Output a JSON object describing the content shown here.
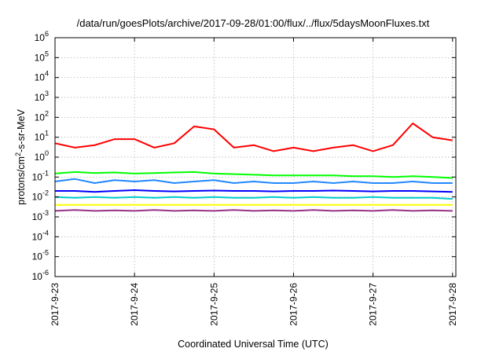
{
  "chart_data": {
    "type": "line",
    "title": "/data/run/goesPlots/archive/2017-09-28/01:00/flux/../flux/5daysMoonFluxes.txt",
    "xlabel": "Coordinated Universal Time (UTC)",
    "ylabel": "protons/cm2-s-sr-MeV",
    "ylabel_main": "protons/cm",
    "ylabel_sup": "2",
    "ylabel_rest": "-s-sr-MeV",
    "xlim": [
      "2017-09-23T00:00",
      "2017-09-28T01:00"
    ],
    "ylim": [
      1e-06,
      1000000.0
    ],
    "yscale": "log",
    "grid": true,
    "x_ticks": [
      "2017-9-23",
      "2017-9-24",
      "2017-9-25",
      "2017-9-26",
      "2017-9-27",
      "2017-9-28"
    ],
    "y_ticks": [
      {
        "base": "10",
        "exp": "6"
      },
      {
        "base": "10",
        "exp": "5"
      },
      {
        "base": "10",
        "exp": "4"
      },
      {
        "base": "10",
        "exp": "3"
      },
      {
        "base": "10",
        "exp": "2"
      },
      {
        "base": "10",
        "exp": "1"
      },
      {
        "base": "10",
        "exp": "0"
      },
      {
        "base": "10",
        "exp": "-1"
      },
      {
        "base": "10",
        "exp": "-2"
      },
      {
        "base": "10",
        "exp": "-3"
      },
      {
        "base": "10",
        "exp": "-4"
      },
      {
        "base": "10",
        "exp": "-5"
      },
      {
        "base": "10",
        "exp": "-6"
      }
    ],
    "x": [
      "2017-09-23T00:00",
      "2017-09-23T06:00",
      "2017-09-23T12:00",
      "2017-09-23T18:00",
      "2017-09-24T00:00",
      "2017-09-24T06:00",
      "2017-09-24T12:00",
      "2017-09-24T18:00",
      "2017-09-25T00:00",
      "2017-09-25T06:00",
      "2017-09-25T12:00",
      "2017-09-25T18:00",
      "2017-09-26T00:00",
      "2017-09-26T06:00",
      "2017-09-26T12:00",
      "2017-09-26T18:00",
      "2017-09-27T00:00",
      "2017-09-27T06:00",
      "2017-09-27T12:00",
      "2017-09-27T18:00",
      "2017-09-28T00:00"
    ],
    "series": [
      {
        "color": "#ff0000",
        "values": [
          5,
          3,
          4,
          8,
          8,
          3,
          5,
          35,
          25,
          3,
          4,
          2,
          3,
          2,
          3,
          4,
          2,
          4,
          50,
          10,
          7
        ]
      },
      {
        "color": "#00ff00",
        "values": [
          0.15,
          0.18,
          0.16,
          0.17,
          0.15,
          0.16,
          0.17,
          0.18,
          0.15,
          0.14,
          0.13,
          0.12,
          0.12,
          0.12,
          0.12,
          0.11,
          0.11,
          0.1,
          0.11,
          0.1,
          0.09
        ]
      },
      {
        "color": "#2288ff",
        "values": [
          0.06,
          0.08,
          0.05,
          0.07,
          0.06,
          0.07,
          0.05,
          0.06,
          0.07,
          0.05,
          0.06,
          0.05,
          0.05,
          0.06,
          0.05,
          0.06,
          0.05,
          0.05,
          0.06,
          0.05,
          0.05
        ]
      },
      {
        "color": "#0000ff",
        "values": [
          0.02,
          0.02,
          0.018,
          0.02,
          0.022,
          0.02,
          0.019,
          0.02,
          0.021,
          0.02,
          0.02,
          0.019,
          0.02,
          0.02,
          0.021,
          0.02,
          0.019,
          0.02,
          0.02,
          0.019,
          0.018
        ]
      },
      {
        "color": "#00cccc",
        "values": [
          0.01,
          0.009,
          0.01,
          0.009,
          0.01,
          0.009,
          0.01,
          0.009,
          0.01,
          0.009,
          0.009,
          0.01,
          0.009,
          0.01,
          0.009,
          0.009,
          0.01,
          0.009,
          0.009,
          0.009,
          0.008
        ]
      },
      {
        "color": "#ffff00",
        "values": [
          0.004,
          0.004,
          0.004,
          0.004,
          0.004,
          0.004,
          0.004,
          0.004,
          0.004,
          0.004,
          0.004,
          0.004,
          0.004,
          0.004,
          0.004,
          0.004,
          0.004,
          0.004,
          0.004,
          0.004,
          0.004
        ]
      },
      {
        "color": "#993388",
        "values": [
          0.002,
          0.0022,
          0.002,
          0.0021,
          0.002,
          0.0022,
          0.002,
          0.0021,
          0.002,
          0.0022,
          0.002,
          0.0021,
          0.002,
          0.0022,
          0.002,
          0.0021,
          0.002,
          0.0022,
          0.002,
          0.0021,
          0.002
        ]
      }
    ]
  }
}
